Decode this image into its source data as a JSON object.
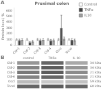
{
  "chart_data": [
    {
      "type": "bar",
      "title": "Proximal colon",
      "annotations": [
        "A"
      ],
      "categories": [
        "Cld-1",
        "Cld-2",
        "Cld-3",
        "Cld-4",
        "Occl",
        "Tricel"
      ],
      "series": [
        {
          "name": "Control",
          "color": "#ffffff",
          "values": [
            100,
            100,
            100,
            100,
            100,
            100
          ],
          "errors": [
            12,
            18,
            18,
            18,
            18,
            12
          ]
        },
        {
          "name": "TNFα",
          "color": "#404040",
          "values": [
            90,
            55,
            90,
            85,
            300,
            95
          ],
          "errors": [
            18,
            12,
            18,
            18,
            220,
            22
          ]
        },
        {
          "name": "IL10",
          "color": "#a0a0a0",
          "values": [
            95,
            70,
            95,
            90,
            115,
            90
          ],
          "errors": [
            18,
            18,
            18,
            18,
            28,
            18
          ]
        }
      ],
      "ylabel": "Protein level, %",
      "ylim": [
        0,
        650
      ],
      "yticks": [
        0,
        100,
        200,
        300,
        400,
        500,
        600
      ],
      "grid": false,
      "legend": "right"
    },
    {
      "type": "heatmap",
      "annotations": [
        "B"
      ],
      "categories": [
        "Cld-1",
        "Cld-2",
        "Cld-3",
        "Cld-4",
        "Occl",
        "Tricel"
      ],
      "columns": [
        "control",
        "TNFα",
        "IL 10"
      ],
      "y2_categories": [
        "34 kDa",
        "34 kDa",
        "21 kDa",
        "21 kDa",
        "59 kDa",
        "60 kDa"
      ],
      "cells": [
        [
          0.55,
          0.8,
          0.45
        ],
        [
          0.65,
          0.85,
          0.55
        ],
        [
          0.7,
          0.85,
          0.6
        ],
        [
          0.65,
          0.8,
          0.55
        ],
        [
          0.35,
          0.28,
          0.32
        ],
        [
          0.8,
          0.85,
          0.8
        ]
      ],
      "grid": false
    }
  ]
}
